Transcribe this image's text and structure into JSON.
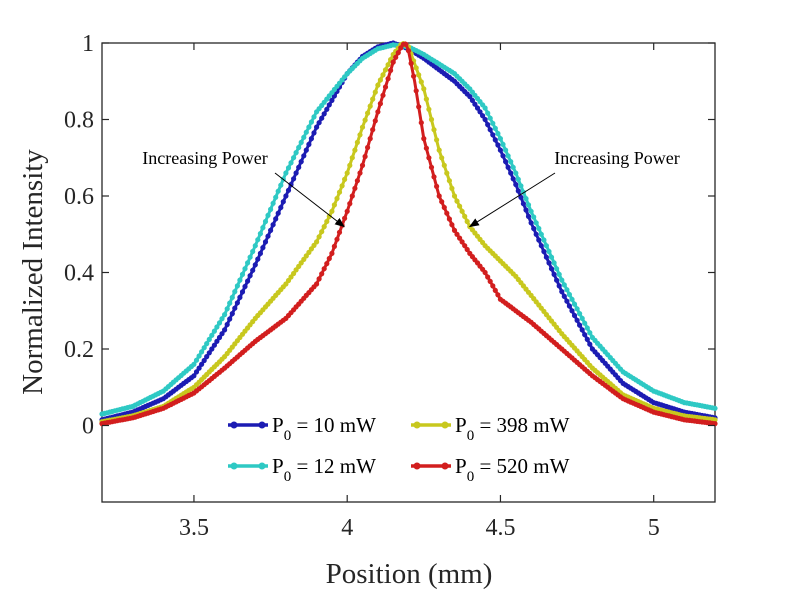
{
  "chart_data": {
    "type": "line",
    "xlabel": "Position (mm)",
    "ylabel": "Normalized Intensity",
    "xlim": [
      3.2,
      5.2
    ],
    "ylim": [
      -0.2,
      1.0
    ],
    "xticks": [
      3.5,
      4,
      4.5,
      5
    ],
    "xtick_labels": [
      "3.5",
      "4",
      "4.5",
      "5"
    ],
    "yticks": [
      0,
      0.2,
      0.4,
      0.6,
      0.8,
      1
    ],
    "ytick_labels": [
      "0",
      "0.2",
      "0.4",
      "0.6",
      "0.8",
      "1"
    ],
    "grid": false,
    "legend": {
      "placement": "bottom-center",
      "columns": 2,
      "entries": [
        {
          "prefix": "P",
          "sub": "0",
          "rest": " = 10 mW"
        },
        {
          "prefix": "P",
          "sub": "0",
          "rest": " = 398 mW"
        },
        {
          "prefix": "P",
          "sub": "0",
          "rest": " = 12 mW"
        },
        {
          "prefix": "P",
          "sub": "0",
          "rest": " = 520 mW"
        }
      ]
    },
    "annotations": [
      {
        "text": "Increasing Power",
        "anchor": [
          3.94,
          0.66
        ],
        "arrow_to": [
          3.99,
          0.52
        ]
      },
      {
        "text": "Increasing Power",
        "anchor": [
          4.56,
          0.65
        ],
        "arrow_to": [
          4.4,
          0.52
        ]
      }
    ],
    "series": [
      {
        "color": "#1c1cb3",
        "x": [
          3.2,
          3.3,
          3.4,
          3.5,
          3.6,
          3.7,
          3.8,
          3.9,
          4.0,
          4.05,
          4.1,
          4.15,
          4.2,
          4.25,
          4.3,
          4.35,
          4.4,
          4.45,
          4.5,
          4.55,
          4.6,
          4.7,
          4.8,
          4.9,
          5.0,
          5.1,
          5.2
        ],
        "y": [
          0.015,
          0.035,
          0.07,
          0.13,
          0.25,
          0.42,
          0.6,
          0.78,
          0.92,
          0.965,
          0.99,
          1.0,
          0.985,
          0.96,
          0.93,
          0.9,
          0.86,
          0.8,
          0.72,
          0.63,
          0.53,
          0.35,
          0.2,
          0.11,
          0.06,
          0.035,
          0.02
        ]
      },
      {
        "color": "#2ec9c4",
        "x": [
          3.2,
          3.3,
          3.4,
          3.5,
          3.6,
          3.7,
          3.8,
          3.9,
          4.0,
          4.05,
          4.1,
          4.15,
          4.2,
          4.25,
          4.3,
          4.35,
          4.4,
          4.45,
          4.5,
          4.55,
          4.6,
          4.7,
          4.8,
          4.9,
          5.0,
          5.1,
          5.2
        ],
        "y": [
          0.03,
          0.05,
          0.09,
          0.16,
          0.29,
          0.47,
          0.66,
          0.82,
          0.92,
          0.96,
          0.985,
          0.995,
          0.99,
          0.97,
          0.945,
          0.92,
          0.88,
          0.83,
          0.75,
          0.66,
          0.56,
          0.38,
          0.23,
          0.14,
          0.09,
          0.06,
          0.045
        ]
      },
      {
        "color": "#c8c81e",
        "x": [
          3.2,
          3.3,
          3.4,
          3.5,
          3.6,
          3.7,
          3.8,
          3.9,
          3.95,
          4.0,
          4.05,
          4.1,
          4.15,
          4.18,
          4.2,
          4.25,
          4.3,
          4.35,
          4.4,
          4.45,
          4.5,
          4.55,
          4.6,
          4.7,
          4.8,
          4.9,
          5.0,
          5.1,
          5.2
        ],
        "y": [
          0.01,
          0.025,
          0.05,
          0.1,
          0.18,
          0.28,
          0.37,
          0.48,
          0.56,
          0.66,
          0.78,
          0.89,
          0.97,
          1.0,
          0.99,
          0.88,
          0.72,
          0.6,
          0.52,
          0.47,
          0.43,
          0.39,
          0.34,
          0.24,
          0.15,
          0.08,
          0.045,
          0.025,
          0.015
        ]
      },
      {
        "color": "#d21e1e",
        "x": [
          3.2,
          3.3,
          3.4,
          3.5,
          3.6,
          3.7,
          3.8,
          3.9,
          3.95,
          4.0,
          4.05,
          4.1,
          4.15,
          4.18,
          4.19,
          4.2,
          4.22,
          4.25,
          4.3,
          4.35,
          4.4,
          4.45,
          4.5,
          4.6,
          4.7,
          4.8,
          4.9,
          5.0,
          5.1,
          5.2
        ],
        "y": [
          0.005,
          0.02,
          0.045,
          0.085,
          0.15,
          0.22,
          0.28,
          0.37,
          0.45,
          0.56,
          0.68,
          0.82,
          0.95,
          0.995,
          1.0,
          0.98,
          0.9,
          0.75,
          0.6,
          0.51,
          0.45,
          0.4,
          0.33,
          0.27,
          0.2,
          0.13,
          0.07,
          0.035,
          0.015,
          0.005
        ]
      }
    ]
  }
}
